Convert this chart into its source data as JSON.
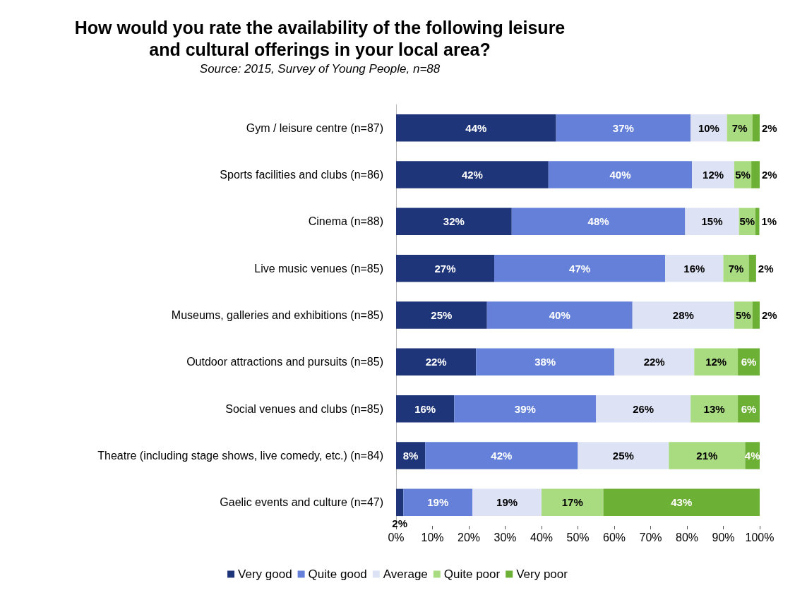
{
  "chart_data": {
    "type": "bar",
    "orientation": "horizontal",
    "stacked": true,
    "title": "How would you rate the availability of the following leisure\nand cultural offerings in your local area?",
    "subtitle": "Source: 2015, Survey of Young People, n=88",
    "categories": [
      "Gym / leisure centre (n=87)",
      "Sports facilities and clubs (n=86)",
      "Cinema (n=88)",
      "Live music venues (n=85)",
      "Museums, galleries and exhibitions (n=85)",
      "Outdoor attractions and pursuits (n=85)",
      "Social venues and clubs (n=85)",
      "Theatre (including stage shows, live comedy, etc.) (n=84)",
      "Gaelic events and culture (n=47)"
    ],
    "series": [
      {
        "name": "Very good",
        "color": "#1f3579",
        "values": [
          44,
          41.9,
          31.8,
          27,
          25,
          22,
          16,
          8,
          2
        ],
        "value_labels": [
          "44%",
          "42%",
          "32%",
          "27%",
          "25%",
          "22%",
          "16%",
          "8%",
          "2%"
        ]
      },
      {
        "name": "Quite good",
        "color": "#6480d8",
        "values": [
          37,
          39.5,
          47.7,
          47,
          40,
          38,
          39,
          42,
          19
        ],
        "value_labels": [
          "37%",
          "40%",
          "48%",
          "47%",
          "40%",
          "38%",
          "39%",
          "42%",
          "19%"
        ]
      },
      {
        "name": "Average",
        "color": "#dde3f4",
        "values": [
          10,
          11.6,
          14.8,
          16,
          28,
          22,
          26,
          25,
          19
        ],
        "value_labels": [
          "10%",
          "12%",
          "15%",
          "16%",
          "28%",
          "22%",
          "26%",
          "25%",
          "19%"
        ]
      },
      {
        "name": "Quite poor",
        "color": "#a9db80",
        "values": [
          7,
          4.7,
          4.5,
          7,
          5,
          12,
          13,
          21,
          17
        ],
        "value_labels": [
          "7%",
          "5%",
          "5%",
          "7%",
          "5%",
          "12%",
          "13%",
          "21%",
          "17%"
        ]
      },
      {
        "name": "Very poor",
        "color": "#6cb035",
        "values": [
          2,
          2.3,
          1.1,
          2,
          2,
          6,
          6,
          4,
          43
        ],
        "value_labels": [
          "2%",
          "2%",
          "1%",
          "2%",
          "2%",
          "6%",
          "6%",
          "4%",
          "43%"
        ]
      }
    ],
    "xlim": [
      0,
      100
    ],
    "xticks": [
      {
        "value": 0,
        "label": "0%"
      },
      {
        "value": 10,
        "label": "10%"
      },
      {
        "value": 20,
        "label": "20%"
      },
      {
        "value": 30,
        "label": "30%"
      },
      {
        "value": 40,
        "label": "40%"
      },
      {
        "value": 50,
        "label": "50%"
      },
      {
        "value": 60,
        "label": "60%"
      },
      {
        "value": 70,
        "label": "70%"
      },
      {
        "value": 80,
        "label": "80%"
      },
      {
        "value": 90,
        "label": "90%"
      },
      {
        "value": 100,
        "label": "100%"
      }
    ],
    "grid": false,
    "legend": "bottom"
  }
}
